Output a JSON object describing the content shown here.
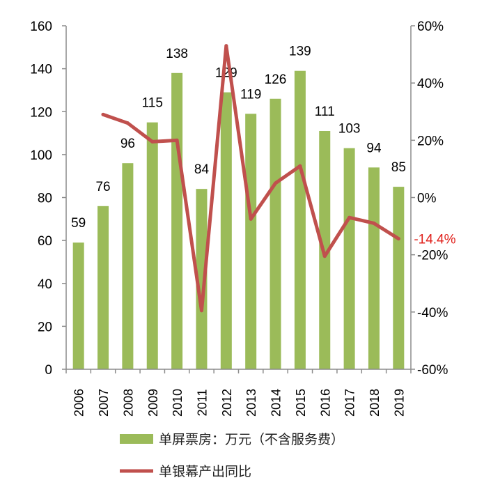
{
  "chart_data": {
    "type": "bar+line",
    "categories": [
      "2006",
      "2007",
      "2008",
      "2009",
      "2010",
      "2011",
      "2012",
      "2013",
      "2014",
      "2015",
      "2016",
      "2017",
      "2018",
      "2019"
    ],
    "series": [
      {
        "name": "单屏票房：万元（不含服务费）",
        "type": "bar",
        "axis": "left",
        "color": "#9bbb59",
        "values": [
          59,
          76,
          96,
          115,
          138,
          84,
          129,
          119,
          126,
          139,
          111,
          103,
          94,
          85
        ]
      },
      {
        "name": "单银幕产出同比",
        "type": "line",
        "axis": "right",
        "color": "#c0504d",
        "values": [
          null,
          29,
          26,
          19.5,
          20,
          -39.5,
          53,
          -7.5,
          5,
          11,
          -20.5,
          -7,
          -9,
          -14.4
        ]
      }
    ],
    "y_left": {
      "min": 0,
      "max": 160,
      "step": 20,
      "ticks": [
        "0",
        "20",
        "40",
        "60",
        "80",
        "100",
        "120",
        "140",
        "160"
      ]
    },
    "y_right": {
      "min": -60,
      "max": 60,
      "step": 20,
      "ticks": [
        "-60%",
        "-40%",
        "-20%",
        "0%",
        "20%",
        "40%",
        "60%"
      ]
    },
    "annotation": {
      "text": "-14.4%",
      "color": "#e0201b"
    },
    "grid": false,
    "legend_position": "bottom"
  }
}
